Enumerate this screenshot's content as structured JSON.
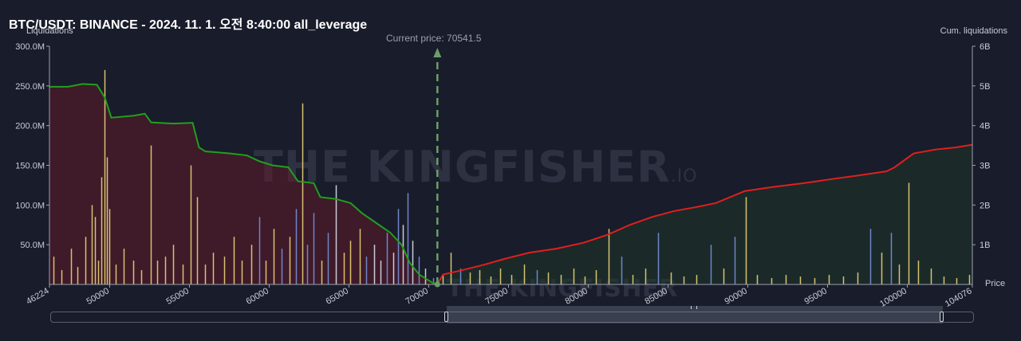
{
  "chart_data": {
    "type": "bar",
    "title": "BTC/USDT: BINANCE - 2024. 11. 1. 오전 8:40:00 all_leverage",
    "left_axis_title": "Liquidations",
    "right_axis_title": "Cum. liquidations",
    "x_axis_title": "Price",
    "current_price_label": "Current price: 70541.5",
    "current_price": 70541.5,
    "xlim": [
      46224,
      104076
    ],
    "ylim_left": [
      0,
      300000000
    ],
    "ylim_right": [
      0,
      6000000000
    ],
    "x_ticks": [
      {
        "value": 46224,
        "label": "46224"
      },
      {
        "value": 50000,
        "label": "50000"
      },
      {
        "value": 55000,
        "label": "55000"
      },
      {
        "value": 60000,
        "label": "60000"
      },
      {
        "value": 65000,
        "label": "65000"
      },
      {
        "value": 70000,
        "label": "70000"
      },
      {
        "value": 75000,
        "label": "75000"
      },
      {
        "value": 80000,
        "label": "80000"
      },
      {
        "value": 85000,
        "label": "85000"
      },
      {
        "value": 90000,
        "label": "90000"
      },
      {
        "value": 95000,
        "label": "95000"
      },
      {
        "value": 100000,
        "label": "100000"
      },
      {
        "value": 104076,
        "label": "104076"
      }
    ],
    "left_ticks": [
      {
        "value": 50000000,
        "label": "50.0M"
      },
      {
        "value": 100000000,
        "label": "100.0M"
      },
      {
        "value": 150000000,
        "label": "150.0M"
      },
      {
        "value": 200000000,
        "label": "200.0M"
      },
      {
        "value": 250000000,
        "label": "250.0M"
      },
      {
        "value": 300000000,
        "label": "300.0M"
      }
    ],
    "right_ticks": [
      {
        "value": 1000000000,
        "label": "1B"
      },
      {
        "value": 2000000000,
        "label": "2B"
      },
      {
        "value": 3000000000,
        "label": "3B"
      },
      {
        "value": 4000000000,
        "label": "4B"
      },
      {
        "value": 5000000000,
        "label": "5B"
      },
      {
        "value": 6000000000,
        "label": "6B"
      }
    ],
    "series": [
      {
        "kind": "line",
        "axis": "right",
        "color": "#1fa01f",
        "fill": "rgba(110,25,40,0.45)",
        "points": [
          [
            46224,
            4980000000.0
          ],
          [
            47400,
            4980000000.0
          ],
          [
            48300,
            5050000000.0
          ],
          [
            49200,
            5030000000.0
          ],
          [
            49700,
            4700000000.0
          ],
          [
            50100,
            4200000000.0
          ],
          [
            51500,
            4250000000.0
          ],
          [
            52200,
            4300000000.0
          ],
          [
            52600,
            4080000000.0
          ],
          [
            54000,
            4050000000.0
          ],
          [
            55200,
            4070000000.0
          ],
          [
            55600,
            3450000000.0
          ],
          [
            56000,
            3350000000.0
          ],
          [
            57500,
            3300000000.0
          ],
          [
            58600,
            3250000000.0
          ],
          [
            59400,
            3100000000.0
          ],
          [
            60200,
            3000000000.0
          ],
          [
            61200,
            2950000000.0
          ],
          [
            61800,
            2600000000.0
          ],
          [
            62800,
            2550000000.0
          ],
          [
            63200,
            2200000000.0
          ],
          [
            64200,
            2150000000.0
          ],
          [
            65100,
            2050000000.0
          ],
          [
            65800,
            1800000000.0
          ],
          [
            66700,
            1550000000.0
          ],
          [
            67600,
            1300000000.0
          ],
          [
            68300,
            1000000000.0
          ],
          [
            68800,
            550000000.0
          ],
          [
            69400,
            250000000.0
          ],
          [
            70200,
            50000000.0
          ],
          [
            70541,
            0.0
          ]
        ]
      },
      {
        "kind": "line",
        "axis": "right",
        "color": "#e01f1f",
        "fill": "rgba(30,55,40,0.5)",
        "points": [
          [
            70541,
            0.0
          ],
          [
            70900,
            250000000.0
          ],
          [
            72000,
            350000000.0
          ],
          [
            73500,
            500000000.0
          ],
          [
            74800,
            650000000.0
          ],
          [
            76300,
            800000000.0
          ],
          [
            78000,
            900000000.0
          ],
          [
            79700,
            1050000000.0
          ],
          [
            81200,
            1250000000.0
          ],
          [
            82600,
            1500000000.0
          ],
          [
            84000,
            1700000000.0
          ],
          [
            85400,
            1850000000.0
          ],
          [
            86800,
            1950000000.0
          ],
          [
            88000,
            2050000000.0
          ],
          [
            89200,
            2250000000.0
          ],
          [
            89800,
            2350000000.0
          ],
          [
            91500,
            2450000000.0
          ],
          [
            93500,
            2550000000.0
          ],
          [
            95200,
            2650000000.0
          ],
          [
            97000,
            2750000000.0
          ],
          [
            98700,
            2850000000.0
          ],
          [
            99200,
            2950000000.0
          ],
          [
            100400,
            3300000000.0
          ],
          [
            101800,
            3400000000.0
          ],
          [
            103000,
            3450000000.0
          ],
          [
            104076,
            3520000000.0
          ]
        ]
      }
    ],
    "bars": [
      {
        "x": 46500,
        "y": 35000000,
        "color": "#d9c16e"
      },
      {
        "x": 47000,
        "y": 18000000,
        "color": "#d9c16e"
      },
      {
        "x": 47600,
        "y": 45000000,
        "color": "#d9c16e"
      },
      {
        "x": 48000,
        "y": 22000000,
        "color": "#d9c16e"
      },
      {
        "x": 48500,
        "y": 60000000,
        "color": "#d9c16e"
      },
      {
        "x": 48900,
        "y": 100000000,
        "color": "#d9c16e"
      },
      {
        "x": 49100,
        "y": 85000000,
        "color": "#d9c16e"
      },
      {
        "x": 49300,
        "y": 30000000,
        "color": "#d9c16e"
      },
      {
        "x": 49500,
        "y": 135000000,
        "color": "#d9c16e"
      },
      {
        "x": 49700,
        "y": 270000000,
        "color": "#d9c16e"
      },
      {
        "x": 49850,
        "y": 160000000,
        "color": "#d9c16e"
      },
      {
        "x": 50000,
        "y": 95000000,
        "color": "#d9c16e"
      },
      {
        "x": 50400,
        "y": 25000000,
        "color": "#d9c16e"
      },
      {
        "x": 50900,
        "y": 45000000,
        "color": "#d9c16e"
      },
      {
        "x": 51500,
        "y": 30000000,
        "color": "#d9c16e"
      },
      {
        "x": 52000,
        "y": 18000000,
        "color": "#d9c16e"
      },
      {
        "x": 52600,
        "y": 175000000,
        "color": "#d9c16e"
      },
      {
        "x": 53000,
        "y": 30000000,
        "color": "#d9c16e"
      },
      {
        "x": 53500,
        "y": 35000000,
        "color": "#d9c16e"
      },
      {
        "x": 54000,
        "y": 50000000,
        "color": "#d9c16e"
      },
      {
        "x": 54600,
        "y": 25000000,
        "color": "#d9c16e"
      },
      {
        "x": 55100,
        "y": 150000000,
        "color": "#d9c16e"
      },
      {
        "x": 55500,
        "y": 110000000,
        "color": "#d9c16e"
      },
      {
        "x": 56000,
        "y": 25000000,
        "color": "#d9c16e"
      },
      {
        "x": 56500,
        "y": 40000000,
        "color": "#d9c16e"
      },
      {
        "x": 57200,
        "y": 35000000,
        "color": "#d9c16e"
      },
      {
        "x": 57800,
        "y": 60000000,
        "color": "#d9c16e"
      },
      {
        "x": 58300,
        "y": 30000000,
        "color": "#d9c16e"
      },
      {
        "x": 58900,
        "y": 50000000,
        "color": "#d9c16e"
      },
      {
        "x": 59400,
        "y": 85000000,
        "color": "#6f85c9"
      },
      {
        "x": 59800,
        "y": 30000000,
        "color": "#d9c16e"
      },
      {
        "x": 60300,
        "y": 70000000,
        "color": "#d9c16e"
      },
      {
        "x": 60800,
        "y": 45000000,
        "color": "#6f85c9"
      },
      {
        "x": 61300,
        "y": 60000000,
        "color": "#d9c16e"
      },
      {
        "x": 61700,
        "y": 95000000,
        "color": "#6f85c9"
      },
      {
        "x": 62100,
        "y": 228000000,
        "color": "#d9c16e"
      },
      {
        "x": 62400,
        "y": 50000000,
        "color": "#6f85c9"
      },
      {
        "x": 62800,
        "y": 90000000,
        "color": "#6f85c9"
      },
      {
        "x": 63300,
        "y": 30000000,
        "color": "#d9c16e"
      },
      {
        "x": 63700,
        "y": 65000000,
        "color": "#6f85c9"
      },
      {
        "x": 64200,
        "y": 125000000,
        "color": "#c9cbd9"
      },
      {
        "x": 64700,
        "y": 40000000,
        "color": "#d9c16e"
      },
      {
        "x": 65100,
        "y": 55000000,
        "color": "#d9c16e"
      },
      {
        "x": 65700,
        "y": 70000000,
        "color": "#d9c16e"
      },
      {
        "x": 66100,
        "y": 35000000,
        "color": "#6f85c9"
      },
      {
        "x": 66600,
        "y": 50000000,
        "color": "#c9cbd9"
      },
      {
        "x": 67000,
        "y": 30000000,
        "color": "#c9cbd9"
      },
      {
        "x": 67400,
        "y": 65000000,
        "color": "#6f85c9"
      },
      {
        "x": 67800,
        "y": 40000000,
        "color": "#c9cbd9"
      },
      {
        "x": 68100,
        "y": 95000000,
        "color": "#6f85c9"
      },
      {
        "x": 68400,
        "y": 75000000,
        "color": "#c9cbd9"
      },
      {
        "x": 68700,
        "y": 115000000,
        "color": "#6f85c9"
      },
      {
        "x": 69000,
        "y": 55000000,
        "color": "#c9cbd9"
      },
      {
        "x": 69400,
        "y": 35000000,
        "color": "#6f85c9"
      },
      {
        "x": 69800,
        "y": 20000000,
        "color": "#c9cbd9"
      },
      {
        "x": 70300,
        "y": 8000000,
        "color": "#6f85c9"
      },
      {
        "x": 70900,
        "y": 12000000,
        "color": "#d9c16e"
      },
      {
        "x": 71400,
        "y": 40000000,
        "color": "#d9c16e"
      },
      {
        "x": 72000,
        "y": 20000000,
        "color": "#6f85c9"
      },
      {
        "x": 72600,
        "y": 15000000,
        "color": "#d9c16e"
      },
      {
        "x": 73200,
        "y": 18000000,
        "color": "#d9c16e"
      },
      {
        "x": 73900,
        "y": 10000000,
        "color": "#d9c16e"
      },
      {
        "x": 74500,
        "y": 20000000,
        "color": "#d9c16e"
      },
      {
        "x": 75200,
        "y": 12000000,
        "color": "#d9c16e"
      },
      {
        "x": 76000,
        "y": 25000000,
        "color": "#d9c16e"
      },
      {
        "x": 76800,
        "y": 18000000,
        "color": "#6f85c9"
      },
      {
        "x": 77500,
        "y": 15000000,
        "color": "#d9c16e"
      },
      {
        "x": 78300,
        "y": 12000000,
        "color": "#d9c16e"
      },
      {
        "x": 79100,
        "y": 20000000,
        "color": "#d9c16e"
      },
      {
        "x": 79800,
        "y": 10000000,
        "color": "#d9c16e"
      },
      {
        "x": 80500,
        "y": 18000000,
        "color": "#d9c16e"
      },
      {
        "x": 81300,
        "y": 70000000,
        "color": "#d9c16e"
      },
      {
        "x": 82100,
        "y": 35000000,
        "color": "#6f85c9"
      },
      {
        "x": 82800,
        "y": 12000000,
        "color": "#d9c16e"
      },
      {
        "x": 83600,
        "y": 20000000,
        "color": "#d9c16e"
      },
      {
        "x": 84400,
        "y": 65000000,
        "color": "#6f85c9"
      },
      {
        "x": 85200,
        "y": 15000000,
        "color": "#d9c16e"
      },
      {
        "x": 86000,
        "y": 10000000,
        "color": "#d9c16e"
      },
      {
        "x": 86800,
        "y": 12000000,
        "color": "#d9c16e"
      },
      {
        "x": 87700,
        "y": 50000000,
        "color": "#6f85c9"
      },
      {
        "x": 88500,
        "y": 20000000,
        "color": "#d9c16e"
      },
      {
        "x": 89200,
        "y": 60000000,
        "color": "#6f85c9"
      },
      {
        "x": 89900,
        "y": 110000000,
        "color": "#d9c16e"
      },
      {
        "x": 90600,
        "y": 12000000,
        "color": "#d9c16e"
      },
      {
        "x": 91500,
        "y": 8000000,
        "color": "#d9c16e"
      },
      {
        "x": 92400,
        "y": 12000000,
        "color": "#d9c16e"
      },
      {
        "x": 93300,
        "y": 10000000,
        "color": "#d9c16e"
      },
      {
        "x": 94200,
        "y": 8000000,
        "color": "#d9c16e"
      },
      {
        "x": 95100,
        "y": 12000000,
        "color": "#d9c16e"
      },
      {
        "x": 96000,
        "y": 10000000,
        "color": "#d9c16e"
      },
      {
        "x": 96900,
        "y": 15000000,
        "color": "#d9c16e"
      },
      {
        "x": 97700,
        "y": 70000000,
        "color": "#6f85c9"
      },
      {
        "x": 98400,
        "y": 40000000,
        "color": "#d9c16e"
      },
      {
        "x": 99000,
        "y": 65000000,
        "color": "#6f85c9"
      },
      {
        "x": 99500,
        "y": 25000000,
        "color": "#d9c16e"
      },
      {
        "x": 100100,
        "y": 128000000,
        "color": "#d9c16e"
      },
      {
        "x": 100700,
        "y": 30000000,
        "color": "#d9c16e"
      },
      {
        "x": 101500,
        "y": 20000000,
        "color": "#d9c16e"
      },
      {
        "x": 102300,
        "y": 10000000,
        "color": "#d9c16e"
      },
      {
        "x": 103100,
        "y": 8000000,
        "color": "#d9c16e"
      },
      {
        "x": 103900,
        "y": 12000000,
        "color": "#d9c16e"
      }
    ]
  },
  "watermark": {
    "main": "THE KINGFISHER",
    "suffix": ".IO"
  },
  "colors": {
    "background": "#191c2a",
    "axis": "#9aa0ad",
    "current_price_line": "#6a9e6a"
  }
}
